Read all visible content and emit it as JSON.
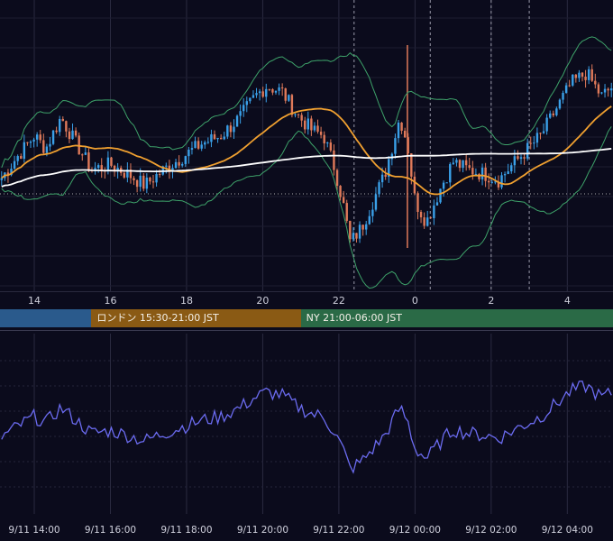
{
  "chart_data": [
    {
      "type": "candlestick",
      "x_axis_ticks": [
        "14",
        "16",
        "18",
        "20",
        "22",
        "0",
        "2",
        "4"
      ],
      "x_hours": [
        14,
        16,
        18,
        20,
        22,
        24,
        26,
        28
      ],
      "x_range": [
        13.1,
        29.2
      ],
      "y_range": [
        0,
        1
      ],
      "series": [
        {
          "name": "",
          "color": "#ffffff"
        },
        {
          "name": "",
          "color": "#f0a030"
        },
        {
          "name": "",
          "color": "#3ea36a"
        }
      ],
      "candle_colors": {
        "up": "#3aa0e8",
        "down": "#e07a5a"
      },
      "grid": true,
      "dashed_markers_hours": [
        22.4,
        24.4,
        26,
        27
      ]
    },
    {
      "type": "line",
      "x_axis_ticks": [
        "9/11 14:00",
        "9/11 16:00",
        "9/11 18:00",
        "9/11 20:00",
        "9/11 22:00",
        "9/12 00:00",
        "9/12 02:00",
        "9/12 04:00"
      ],
      "series": [
        {
          "name": "",
          "color": "#6b6bf0"
        }
      ],
      "grid": true
    }
  ],
  "sessions": [
    {
      "label": "",
      "color": "#2a5a8c"
    },
    {
      "label": "ロンドン 15:30-21:00 JST",
      "color": "#8a5a14"
    },
    {
      "label": "NY 21:00-06:00 JST",
      "color": "#2a6a46"
    }
  ]
}
